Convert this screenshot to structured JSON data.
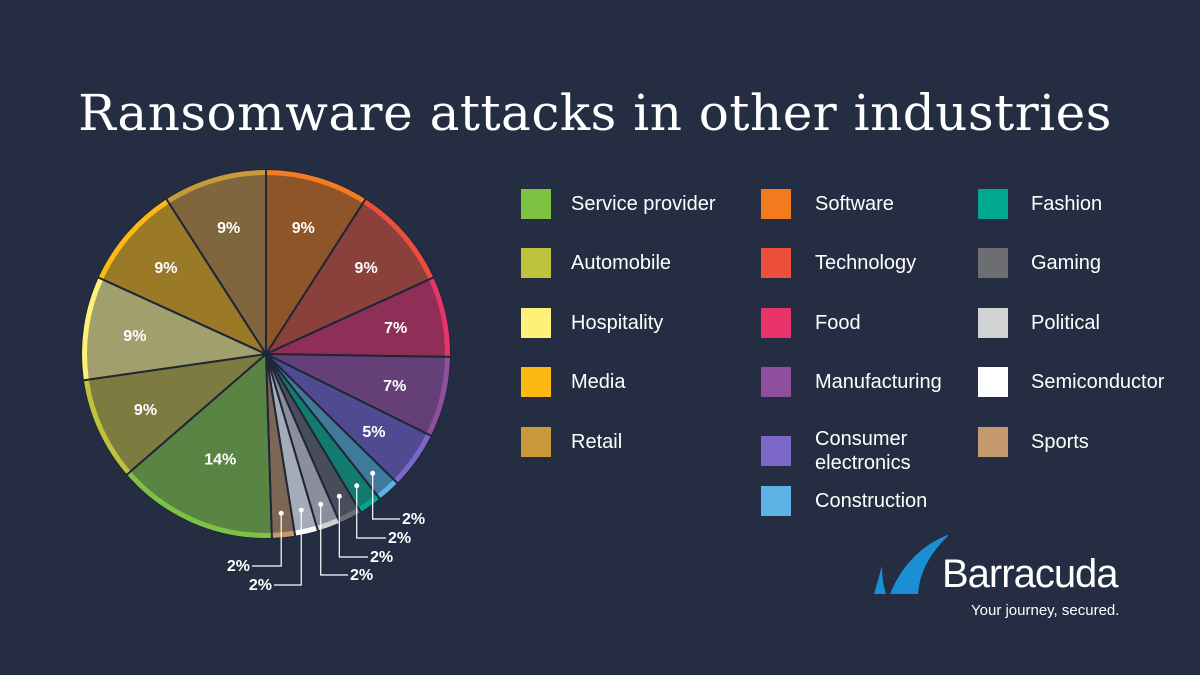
{
  "chart_data": {
    "type": "pie",
    "title": "Ransomware attacks in other industries",
    "start_angle_deg": 0,
    "direction": "clockwise",
    "legend_position": "right",
    "slices": [
      {
        "name": "Software",
        "value": 9,
        "label": "9%",
        "color": "#f37b20",
        "fill": "#8e5529"
      },
      {
        "name": "Technology",
        "value": 9,
        "label": "9%",
        "color": "#ef4e3a",
        "fill": "#8a403b"
      },
      {
        "name": "Food",
        "value": 7,
        "label": "7%",
        "color": "#e8336b",
        "fill": "#8f2f57"
      },
      {
        "name": "Manufacturing",
        "value": 7,
        "label": "7%",
        "color": "#8e4f9f",
        "fill": "#653f78"
      },
      {
        "name": "Consumer electronics",
        "value": 5,
        "label": "5%",
        "color": "#7b68c9",
        "fill": "#504b90"
      },
      {
        "name": "Construction",
        "value": 2,
        "label": "2%",
        "color": "#5bb4e5",
        "fill": "#3f7a9b"
      },
      {
        "name": "Fashion",
        "value": 2,
        "label": "2%",
        "color": "#00a88f",
        "fill": "#127b6f"
      },
      {
        "name": "Gaming",
        "value": 2,
        "label": "2%",
        "color": "#6d6e71",
        "fill": "#474d5b"
      },
      {
        "name": "Political",
        "value": 2,
        "label": "2%",
        "color": "#d1d2d4",
        "fill": "#8a8f9b"
      },
      {
        "name": "Semiconductor",
        "value": 2,
        "label": "2%",
        "color": "#ffffff",
        "fill": "#a5abb8"
      },
      {
        "name": "Sports",
        "value": 2,
        "label": "2%",
        "color": "#c49a6c",
        "fill": "#7d6754"
      },
      {
        "name": "Service provider",
        "value": 14,
        "label": "14%",
        "color": "#7dc242",
        "fill": "#5a8444"
      },
      {
        "name": "Automobile",
        "value": 9,
        "label": "9%",
        "color": "#bfc23d",
        "fill": "#7d7b40"
      },
      {
        "name": "Hospitality",
        "value": 9,
        "label": "9%",
        "color": "#fdf17a",
        "fill": "#a19f6b"
      },
      {
        "name": "Media",
        "value": 9,
        "label": "9%",
        "color": "#fdb813",
        "fill": "#9b7a27"
      },
      {
        "name": "Retail",
        "value": 9,
        "label": "9%",
        "color": "#c99a3a",
        "fill": "#7f663e"
      }
    ]
  },
  "legend": [
    {
      "label": "Service provider",
      "color": "#7dc242"
    },
    {
      "label": "Automobile",
      "color": "#bfc23d"
    },
    {
      "label": "Hospitality",
      "color": "#fdf17a"
    },
    {
      "label": "Media",
      "color": "#fdb813"
    },
    {
      "label": "Retail",
      "color": "#c99a3a"
    },
    {
      "label": "Software",
      "color": "#f37b20"
    },
    {
      "label": "Technology",
      "color": "#ef4e3a"
    },
    {
      "label": "Food",
      "color": "#e8336b"
    },
    {
      "label": "Manufacturing",
      "color": "#8e4f9f"
    },
    {
      "label": "Consumer electronics",
      "color": "#7b68c9"
    },
    {
      "label": "Construction",
      "color": "#5bb4e5"
    },
    {
      "label": "Fashion",
      "color": "#00a88f"
    },
    {
      "label": "Gaming",
      "color": "#6d6e71"
    },
    {
      "label": "Political",
      "color": "#d1d2d4"
    },
    {
      "label": "Semiconductor",
      "color": "#ffffff"
    },
    {
      "label": "Sports",
      "color": "#c49a6c"
    }
  ],
  "logo": {
    "brand": "Barracuda",
    "tagline": "Your journey, secured.",
    "color": "#1a8fd6"
  },
  "background": "#242d42"
}
